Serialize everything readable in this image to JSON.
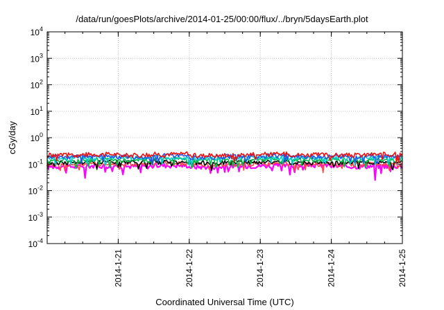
{
  "chart_data": {
    "type": "line",
    "title": "/data/run/goesPlots/archive/2014-01-25/00:00/flux/../bryn/5daysEarth.plot",
    "xlabel": "Coordinated Universal Time (UTC)",
    "ylabel": "cGy/day",
    "y_scale": "log",
    "ylim_exponent": [
      -4,
      4
    ],
    "y_tick_labels": [
      {
        "base": "10",
        "exp": "-4"
      },
      {
        "base": "10",
        "exp": "-3"
      },
      {
        "base": "10",
        "exp": "-2"
      },
      {
        "base": "10",
        "exp": "-1"
      },
      {
        "base": "10",
        "exp": "0"
      },
      {
        "base": "10",
        "exp": "1"
      },
      {
        "base": "10",
        "exp": "2"
      },
      {
        "base": "10",
        "exp": "3"
      },
      {
        "base": "10",
        "exp": "4"
      }
    ],
    "x_range": [
      "2014-01-20 00:00",
      "2014-01-25 00:00"
    ],
    "x_tick_labels": [
      "2014-1-21",
      "2014-1-22",
      "2014-1-23",
      "2014-1-24",
      "2014-1-25"
    ],
    "grid": true,
    "legend": "none",
    "series": [
      {
        "color": "#ff00ff",
        "values": [
          0.08,
          0.085,
          0.082,
          0.088,
          0.078,
          0.084,
          0.086,
          0.09,
          0.081,
          0.083
        ],
        "fill_dips": [
          {
            "x": "2014-01-20 13:00",
            "y": 0.03
          },
          {
            "x": "2014-01-23 10:00",
            "y": 0.04
          },
          {
            "x": "2014-01-24 15:00",
            "y": 0.025
          }
        ]
      },
      {
        "color": "#ff4444",
        "values": [
          0.095,
          0.1,
          0.098,
          0.105,
          0.092,
          0.099,
          0.101,
          0.097,
          0.096,
          0.1
        ]
      },
      {
        "color": "#000000",
        "values": [
          0.115,
          0.118,
          0.112,
          0.12,
          0.11,
          0.116,
          0.119,
          0.114,
          0.113,
          0.117
        ]
      },
      {
        "color": "#00bb44",
        "values": [
          0.14,
          0.145,
          0.138,
          0.15,
          0.136,
          0.142,
          0.147,
          0.141,
          0.139,
          0.144
        ]
      },
      {
        "color": "#00cccc",
        "values": [
          0.17,
          0.175,
          0.168,
          0.18,
          0.165,
          0.172,
          0.178,
          0.171,
          0.169,
          0.174
        ]
      },
      {
        "color": "#2255ee",
        "values": [
          0.19,
          0.2,
          0.185,
          0.21,
          0.18,
          0.195,
          0.205,
          0.192,
          0.188,
          0.198
        ]
      },
      {
        "color": "#ee1111",
        "values": [
          0.22,
          0.235,
          0.215,
          0.24,
          0.21,
          0.228,
          0.238,
          0.225,
          0.218,
          0.232
        ]
      }
    ]
  }
}
